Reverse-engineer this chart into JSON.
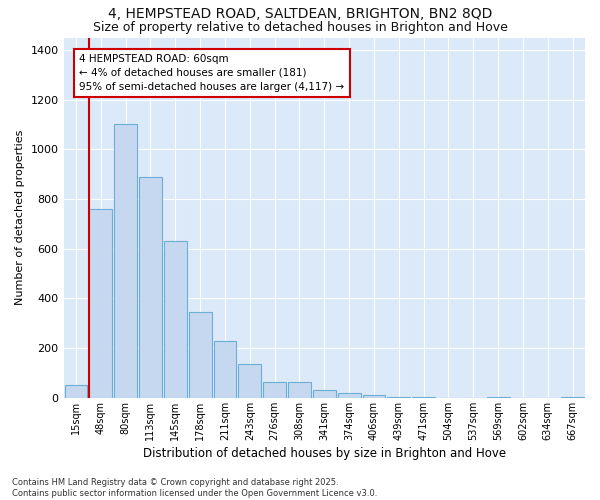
{
  "title_line1": "4, HEMPSTEAD ROAD, SALTDEAN, BRIGHTON, BN2 8QD",
  "title_line2": "Size of property relative to detached houses in Brighton and Hove",
  "xlabel": "Distribution of detached houses by size in Brighton and Hove",
  "ylabel": "Number of detached properties",
  "categories": [
    "15sqm",
    "48sqm",
    "80sqm",
    "113sqm",
    "145sqm",
    "178sqm",
    "211sqm",
    "243sqm",
    "276sqm",
    "308sqm",
    "341sqm",
    "374sqm",
    "406sqm",
    "439sqm",
    "471sqm",
    "504sqm",
    "537sqm",
    "569sqm",
    "602sqm",
    "634sqm",
    "667sqm"
  ],
  "values": [
    50,
    760,
    1100,
    890,
    630,
    345,
    230,
    135,
    65,
    65,
    30,
    20,
    10,
    5,
    5,
    0,
    0,
    5,
    0,
    0,
    5
  ],
  "bar_color": "#c5d8f0",
  "bar_edge_color": "#6baed6",
  "plot_bg_color": "#dce9f8",
  "fig_bg_color": "#ffffff",
  "grid_color": "#ffffff",
  "red_line_x": 1,
  "annotation_title": "4 HEMPSTEAD ROAD: 60sqm",
  "annotation_line1": "← 4% of detached houses are smaller (181)",
  "annotation_line2": "95% of semi-detached houses are larger (4,117) →",
  "annotation_box_color": "#ffffff",
  "annotation_box_edge": "#cc0000",
  "red_line_color": "#cc0000",
  "ylim": [
    0,
    1450
  ],
  "yticks": [
    0,
    200,
    400,
    600,
    800,
    1000,
    1200,
    1400
  ],
  "footnote_line1": "Contains HM Land Registry data © Crown copyright and database right 2025.",
  "footnote_line2": "Contains public sector information licensed under the Open Government Licence v3.0."
}
